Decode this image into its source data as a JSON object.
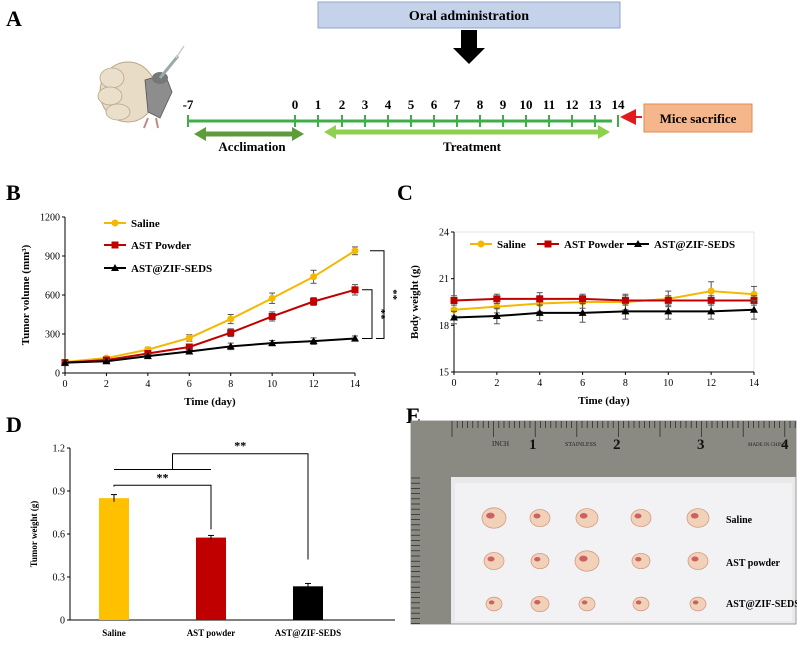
{
  "panels": {
    "a_letter": "A",
    "b_letter": "B",
    "c_letter": "C",
    "d_letter": "D",
    "e_letter": "E"
  },
  "timeline": {
    "oral_administration": "Oral administration",
    "mice_sacrifice": "Mice sacrifice",
    "acclimation": "Acclimation",
    "treatment": "Treatment",
    "days": [
      "-7",
      "0",
      "1",
      "2",
      "3",
      "4",
      "5",
      "6",
      "7",
      "8",
      "9",
      "10",
      "11",
      "12",
      "13",
      "14"
    ],
    "colors": {
      "box_blue": "#c5d3ea",
      "box_orange": "#f6b68b",
      "green_line": "#3fae49",
      "acclimation_arrow": "#5e9c3b",
      "treatment_arrow": "#8fd14f",
      "red_arrow": "#e01b1b"
    }
  },
  "photo": {
    "ruler_labels": [
      "INCH",
      "1",
      "STAINLESS",
      "2",
      "3",
      "4",
      "MADE IN CHINA"
    ],
    "rows": [
      "Saline",
      "AST powder",
      "AST@ZIF-SEDS"
    ]
  },
  "chart_data": [
    {
      "id": "B",
      "type": "line",
      "xlabel": "Time (day)",
      "ylabel": "Tumor volume (mm³)",
      "x": [
        0,
        2,
        4,
        6,
        8,
        10,
        12,
        14
      ],
      "xlim": [
        0,
        14
      ],
      "ylim": [
        0,
        1200
      ],
      "xticks": [
        "0",
        "2",
        "4",
        "6",
        "8",
        "10",
        "12",
        "14"
      ],
      "yticks": [
        "0",
        "300",
        "600",
        "900",
        "1200"
      ],
      "series": [
        {
          "name": "Saline",
          "color": "#f5b800",
          "marker": "circle",
          "values": [
            85,
            115,
            180,
            270,
            415,
            575,
            740,
            940
          ],
          "errors": [
            10,
            12,
            18,
            25,
            35,
            40,
            50,
            30
          ]
        },
        {
          "name": "AST Powder",
          "color": "#c00000",
          "marker": "square",
          "values": [
            80,
            100,
            150,
            200,
            310,
            435,
            550,
            640
          ],
          "errors": [
            8,
            10,
            15,
            20,
            30,
            35,
            30,
            40
          ]
        },
        {
          "name": "AST@ZIF-SEDS",
          "color": "#000000",
          "marker": "triangle",
          "values": [
            80,
            90,
            130,
            165,
            205,
            230,
            245,
            265
          ],
          "errors": [
            8,
            10,
            15,
            18,
            25,
            20,
            25,
            20
          ]
        }
      ],
      "significance": [
        "**",
        "**"
      ]
    },
    {
      "id": "C",
      "type": "line",
      "xlabel": "Time (day)",
      "ylabel": "Body weight (g)",
      "x": [
        0,
        2,
        4,
        6,
        8,
        10,
        12,
        14
      ],
      "xlim": [
        0,
        14
      ],
      "ylim": [
        15,
        24
      ],
      "xticks": [
        "0",
        "2",
        "4",
        "6",
        "8",
        "10",
        "12",
        "14"
      ],
      "yticks": [
        "15",
        "18",
        "21",
        "24"
      ],
      "series": [
        {
          "name": "Saline",
          "color": "#f5b800",
          "marker": "circle",
          "values": [
            19.0,
            19.2,
            19.4,
            19.5,
            19.5,
            19.7,
            20.2,
            20.0
          ],
          "errors": [
            0.4,
            0.4,
            0.5,
            0.4,
            0.5,
            0.5,
            0.6,
            0.5
          ]
        },
        {
          "name": "AST Powder",
          "color": "#c00000",
          "marker": "square",
          "values": [
            19.6,
            19.7,
            19.7,
            19.7,
            19.6,
            19.6,
            19.6,
            19.6
          ],
          "errors": [
            0.3,
            0.3,
            0.4,
            0.3,
            0.3,
            0.3,
            0.3,
            0.3
          ]
        },
        {
          "name": "AST@ZIF-SEDS",
          "color": "#000000",
          "marker": "triangle",
          "values": [
            18.5,
            18.6,
            18.8,
            18.8,
            18.9,
            18.9,
            18.9,
            19.0
          ],
          "errors": [
            0.4,
            0.5,
            0.5,
            0.6,
            0.5,
            0.5,
            0.5,
            0.6
          ]
        }
      ]
    },
    {
      "id": "D",
      "type": "bar",
      "ylabel": "Tumor weight (g)",
      "categories": [
        "Saline",
        "AST powder",
        "AST@ZIF-SEDS"
      ],
      "values": [
        0.85,
        0.575,
        0.235
      ],
      "errors": [
        0.025,
        0.015,
        0.02
      ],
      "colors": [
        "#ffc000",
        "#c00000",
        "#000000"
      ],
      "ylim": [
        0,
        1.2
      ],
      "yticks": [
        "0",
        "0.3",
        "0.6",
        "0.9",
        "1.2"
      ],
      "significance": [
        "**",
        "**"
      ]
    }
  ]
}
